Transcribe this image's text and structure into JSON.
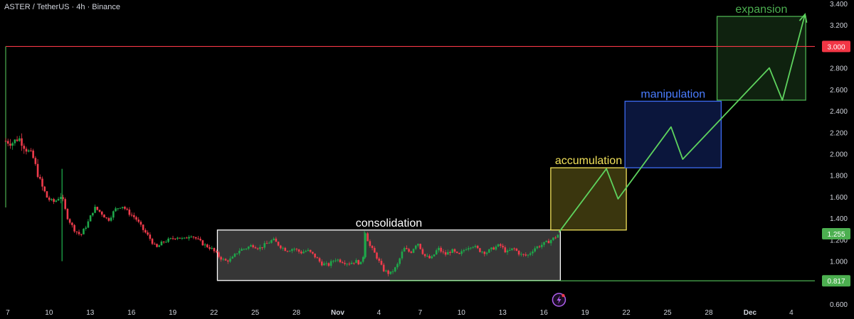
{
  "header": {
    "title": "ASTER / TetherUS · 4h · Binance"
  },
  "colors": {
    "up": "#26a69a",
    "upCandle": "#1ea84a",
    "down": "#ef3b4b",
    "resistance": "#f23645",
    "support": "#4caf50",
    "axisText": "#d1d4dc",
    "priceTagRed": "#f23645",
    "priceTagGreen": "#4caf50",
    "lightning": "#b05ff0"
  },
  "chart_data": {
    "type": "candlestick",
    "title": "ASTER / TetherUS · 4h · Binance",
    "y_axis": {
      "ticks": [
        0.6,
        1.0,
        1.2,
        1.4,
        1.6,
        1.8,
        2.0,
        2.2,
        2.4,
        2.6,
        2.8,
        3.0,
        3.2,
        3.4
      ],
      "tick_labels": [
        "0.600",
        "1.000",
        "1.200",
        "1.400",
        "1.600",
        "1.800",
        "2.000",
        "2.200",
        "2.400",
        "2.600",
        "2.800",
        "3.000",
        "3.200",
        "3.400"
      ],
      "range": [
        0.6,
        3.4
      ]
    },
    "x_axis": {
      "labels": [
        {
          "day": 7,
          "label": "7"
        },
        {
          "day": 10,
          "label": "10"
        },
        {
          "day": 13,
          "label": "13"
        },
        {
          "day": 16,
          "label": "16"
        },
        {
          "day": 19,
          "label": "19"
        },
        {
          "day": 22,
          "label": "22"
        },
        {
          "day": 25,
          "label": "25"
        },
        {
          "day": 28,
          "label": "28"
        },
        {
          "day": 31,
          "label": "Nov"
        },
        {
          "day": 34,
          "label": "4"
        },
        {
          "day": 37,
          "label": "7"
        },
        {
          "day": 40,
          "label": "10"
        },
        {
          "day": 43,
          "label": "13"
        },
        {
          "day": 46,
          "label": "16"
        },
        {
          "day": 49,
          "label": "19"
        },
        {
          "day": 52,
          "label": "22"
        },
        {
          "day": 55,
          "label": "25"
        },
        {
          "day": 58,
          "label": "28"
        },
        {
          "day": 61,
          "label": "Dec"
        },
        {
          "day": 64,
          "label": "4"
        }
      ],
      "range_days": [
        6.85,
        65.3
      ]
    },
    "price_path": [
      [
        6.85,
        2.12
      ],
      [
        7.3,
        2.1
      ],
      [
        7.8,
        2.15
      ],
      [
        8.3,
        2.05
      ],
      [
        8.8,
        1.98
      ],
      [
        9.4,
        1.72
      ],
      [
        9.9,
        1.58
      ],
      [
        10.4,
        1.55
      ],
      [
        10.9,
        1.62
      ],
      [
        11.3,
        1.42
      ],
      [
        11.8,
        1.3
      ],
      [
        12.3,
        1.24
      ],
      [
        12.8,
        1.35
      ],
      [
        13.3,
        1.5
      ],
      [
        13.8,
        1.45
      ],
      [
        14.3,
        1.38
      ],
      [
        14.8,
        1.48
      ],
      [
        15.3,
        1.52
      ],
      [
        15.8,
        1.45
      ],
      [
        16.3,
        1.4
      ],
      [
        16.8,
        1.3
      ],
      [
        17.3,
        1.22
      ],
      [
        17.8,
        1.12
      ],
      [
        18.3,
        1.18
      ],
      [
        18.8,
        1.2
      ],
      [
        19.3,
        1.23
      ],
      [
        19.8,
        1.2
      ],
      [
        20.3,
        1.25
      ],
      [
        20.8,
        1.2
      ],
      [
        21.3,
        1.15
      ],
      [
        21.8,
        1.12
      ],
      [
        22.3,
        1.05
      ],
      [
        22.8,
        1.0
      ],
      [
        23.3,
        1.02
      ],
      [
        23.8,
        1.1
      ],
      [
        24.3,
        1.12
      ],
      [
        24.8,
        1.15
      ],
      [
        25.3,
        1.12
      ],
      [
        25.8,
        1.16
      ],
      [
        26.3,
        1.2
      ],
      [
        26.8,
        1.14
      ],
      [
        27.3,
        1.1
      ],
      [
        27.8,
        1.12
      ],
      [
        28.3,
        1.08
      ],
      [
        28.8,
        1.1
      ],
      [
        29.3,
        1.05
      ],
      [
        29.8,
        0.98
      ],
      [
        30.3,
        0.96
      ],
      [
        30.8,
        1.02
      ],
      [
        31.3,
        1.0
      ],
      [
        31.8,
        0.98
      ],
      [
        32.3,
        1.0
      ],
      [
        32.8,
        0.97
      ],
      [
        33.0,
        1.28
      ],
      [
        33.3,
        1.15
      ],
      [
        33.8,
        1.05
      ],
      [
        34.3,
        0.92
      ],
      [
        34.8,
        0.88
      ],
      [
        35.3,
        0.95
      ],
      [
        35.8,
        1.12
      ],
      [
        36.3,
        1.08
      ],
      [
        36.8,
        1.18
      ],
      [
        37.3,
        1.05
      ],
      [
        37.8,
        1.02
      ],
      [
        38.3,
        1.12
      ],
      [
        38.8,
        1.06
      ],
      [
        39.3,
        1.1
      ],
      [
        39.8,
        1.05
      ],
      [
        40.3,
        1.12
      ],
      [
        40.8,
        1.15
      ],
      [
        41.3,
        1.1
      ],
      [
        41.8,
        1.08
      ],
      [
        42.3,
        1.12
      ],
      [
        42.8,
        1.15
      ],
      [
        43.3,
        1.08
      ],
      [
        43.8,
        1.12
      ],
      [
        44.3,
        1.06
      ],
      [
        44.8,
        1.05
      ],
      [
        45.3,
        1.12
      ],
      [
        45.8,
        1.15
      ],
      [
        46.3,
        1.18
      ],
      [
        46.8,
        1.22
      ],
      [
        47.1,
        1.255
      ]
    ],
    "horizontal_lines": [
      {
        "name": "resistance",
        "value": 3.0,
        "from_day": 6.85,
        "price_label": "3.000"
      },
      {
        "name": "support",
        "value": 0.817,
        "from_day": 34.8,
        "price_label": "0.817"
      }
    ],
    "current_price": {
      "value": 1.255,
      "price_label": "1.255"
    },
    "boxes": [
      {
        "name": "consolidation",
        "label": "consolidation",
        "x0": 22.25,
        "x1": 47.2,
        "y0": 0.82,
        "y1": 1.29,
        "border": "#ffffff",
        "fill": "rgba(128,128,128,0.42)",
        "label_color": "#ffffff"
      },
      {
        "name": "accumulation",
        "label": "accumulation",
        "x0": 46.5,
        "x1": 52.0,
        "y0": 1.29,
        "y1": 1.87,
        "border": "#f1e15a",
        "fill": "rgba(128,120,30,0.45)",
        "label_color": "#f1e15a"
      },
      {
        "name": "manipulation",
        "label": "manipulation",
        "x0": 51.9,
        "x1": 58.9,
        "y0": 1.87,
        "y1": 2.49,
        "border": "#3d6bf2",
        "fill": "rgba(20,40,110,0.55)",
        "label_color": "#4a7cff"
      },
      {
        "name": "expansion",
        "label": "expansion",
        "x0": 58.6,
        "x1": 65.05,
        "y0": 2.5,
        "y1": 3.28,
        "border": "#4caf50",
        "fill": "rgba(40,90,40,0.38)",
        "label_color": "#4caf50"
      }
    ],
    "projection_path": [
      [
        47.1,
        1.27
      ],
      [
        50.55,
        1.86
      ],
      [
        51.4,
        1.58
      ],
      [
        55.25,
        2.25
      ],
      [
        56.1,
        1.95
      ],
      [
        62.4,
        2.8
      ],
      [
        63.35,
        2.5
      ],
      [
        65.0,
        3.3
      ]
    ]
  }
}
